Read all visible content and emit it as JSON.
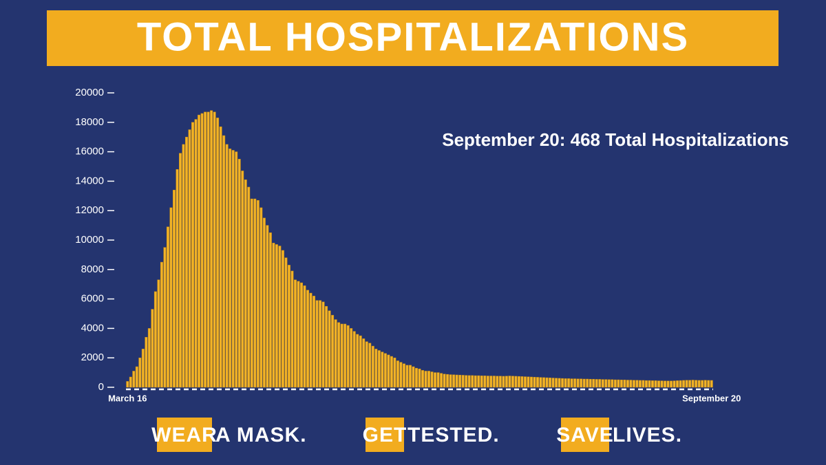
{
  "chart_data": {
    "type": "bar",
    "title": "TOTAL HOSPITALIZATIONS",
    "annotation": "September 20: 468 Total Hospitalizations",
    "color": "#f2b327",
    "categories": [
      "March 16",
      null,
      null,
      null,
      null,
      null,
      null,
      null,
      null,
      null,
      null,
      null,
      null,
      null,
      null,
      null,
      null,
      null,
      null,
      null,
      null,
      null,
      null,
      null,
      null,
      null,
      null,
      null,
      null,
      null,
      null,
      null,
      null,
      null,
      null,
      null,
      null,
      null,
      null,
      null,
      null,
      null,
      null,
      null,
      null,
      null,
      null,
      null,
      null,
      null,
      null,
      null,
      null,
      null,
      null,
      null,
      null,
      null,
      null,
      null,
      null,
      null,
      null,
      null,
      null,
      null,
      null,
      null,
      null,
      null,
      null,
      null,
      null,
      null,
      null,
      null,
      null,
      null,
      null,
      null,
      null,
      null,
      null,
      null,
      null,
      null,
      null,
      null,
      null,
      null,
      null,
      null,
      null,
      null,
      null,
      null,
      null,
      null,
      null,
      null,
      null,
      null,
      null,
      null,
      null,
      null,
      null,
      null,
      null,
      null,
      null,
      null,
      null,
      null,
      null,
      null,
      null,
      null,
      null,
      null,
      null,
      null,
      null,
      null,
      null,
      null,
      null,
      null,
      null,
      null,
      null,
      null,
      null,
      null,
      null,
      null,
      null,
      null,
      null,
      null,
      null,
      null,
      null,
      null,
      null,
      null,
      null,
      null,
      null,
      null,
      null,
      null,
      null,
      null,
      null,
      null,
      null,
      null,
      null,
      null,
      null,
      null,
      null,
      null,
      null,
      null,
      null,
      null,
      null,
      null,
      null,
      null,
      null,
      null,
      null,
      null,
      null,
      null,
      null,
      null,
      null,
      null,
      null,
      null,
      null,
      null,
      null,
      null,
      "September 20"
    ],
    "values": [
      400,
      700,
      1100,
      1400,
      2000,
      2600,
      3400,
      4000,
      5300,
      6500,
      7300,
      8500,
      9500,
      10900,
      12200,
      13400,
      14800,
      15900,
      16500,
      17000,
      17500,
      18000,
      18200,
      18500,
      18600,
      18700,
      18700,
      18800,
      18700,
      18300,
      17700,
      17100,
      16500,
      16200,
      16100,
      16000,
      15500,
      14700,
      14100,
      13600,
      12800,
      12800,
      12700,
      12200,
      11500,
      11000,
      10500,
      9800,
      9700,
      9600,
      9300,
      8800,
      8300,
      7900,
      7300,
      7200,
      7100,
      6900,
      6600,
      6400,
      6200,
      5900,
      5900,
      5800,
      5500,
      5200,
      4900,
      4600,
      4400,
      4300,
      4300,
      4200,
      4000,
      3800,
      3600,
      3500,
      3300,
      3100,
      3000,
      2800,
      2600,
      2500,
      2400,
      2300,
      2200,
      2100,
      2000,
      1800,
      1700,
      1600,
      1500,
      1500,
      1400,
      1300,
      1250,
      1150,
      1100,
      1100,
      1050,
      1000,
      1000,
      950,
      900,
      880,
      860,
      850,
      840,
      830,
      820,
      810,
      800,
      800,
      790,
      790,
      780,
      780,
      770,
      770,
      770,
      760,
      760,
      750,
      760,
      770,
      760,
      750,
      740,
      730,
      720,
      710,
      700,
      690,
      680,
      670,
      660,
      650,
      640,
      630,
      620,
      610,
      600,
      590,
      590,
      580,
      580,
      570,
      570,
      560,
      560,
      550,
      550,
      540,
      540,
      530,
      530,
      520,
      520,
      510,
      510,
      500,
      500,
      490,
      490,
      480,
      480,
      470,
      470,
      460,
      460,
      450,
      450,
      440,
      440,
      430,
      430,
      430,
      440,
      450,
      460,
      470,
      480,
      480,
      490,
      480,
      470,
      470,
      480,
      470,
      468
    ],
    "ylim": [
      0,
      20000
    ],
    "yticks": [
      0,
      2000,
      4000,
      6000,
      8000,
      10000,
      12000,
      14000,
      16000,
      18000,
      20000
    ]
  },
  "footer": [
    {
      "highlight": "WEAR",
      "text": "A MASK."
    },
    {
      "highlight": "GET",
      "text": "TESTED."
    },
    {
      "highlight": "SAVE",
      "text": "LIVES."
    }
  ]
}
